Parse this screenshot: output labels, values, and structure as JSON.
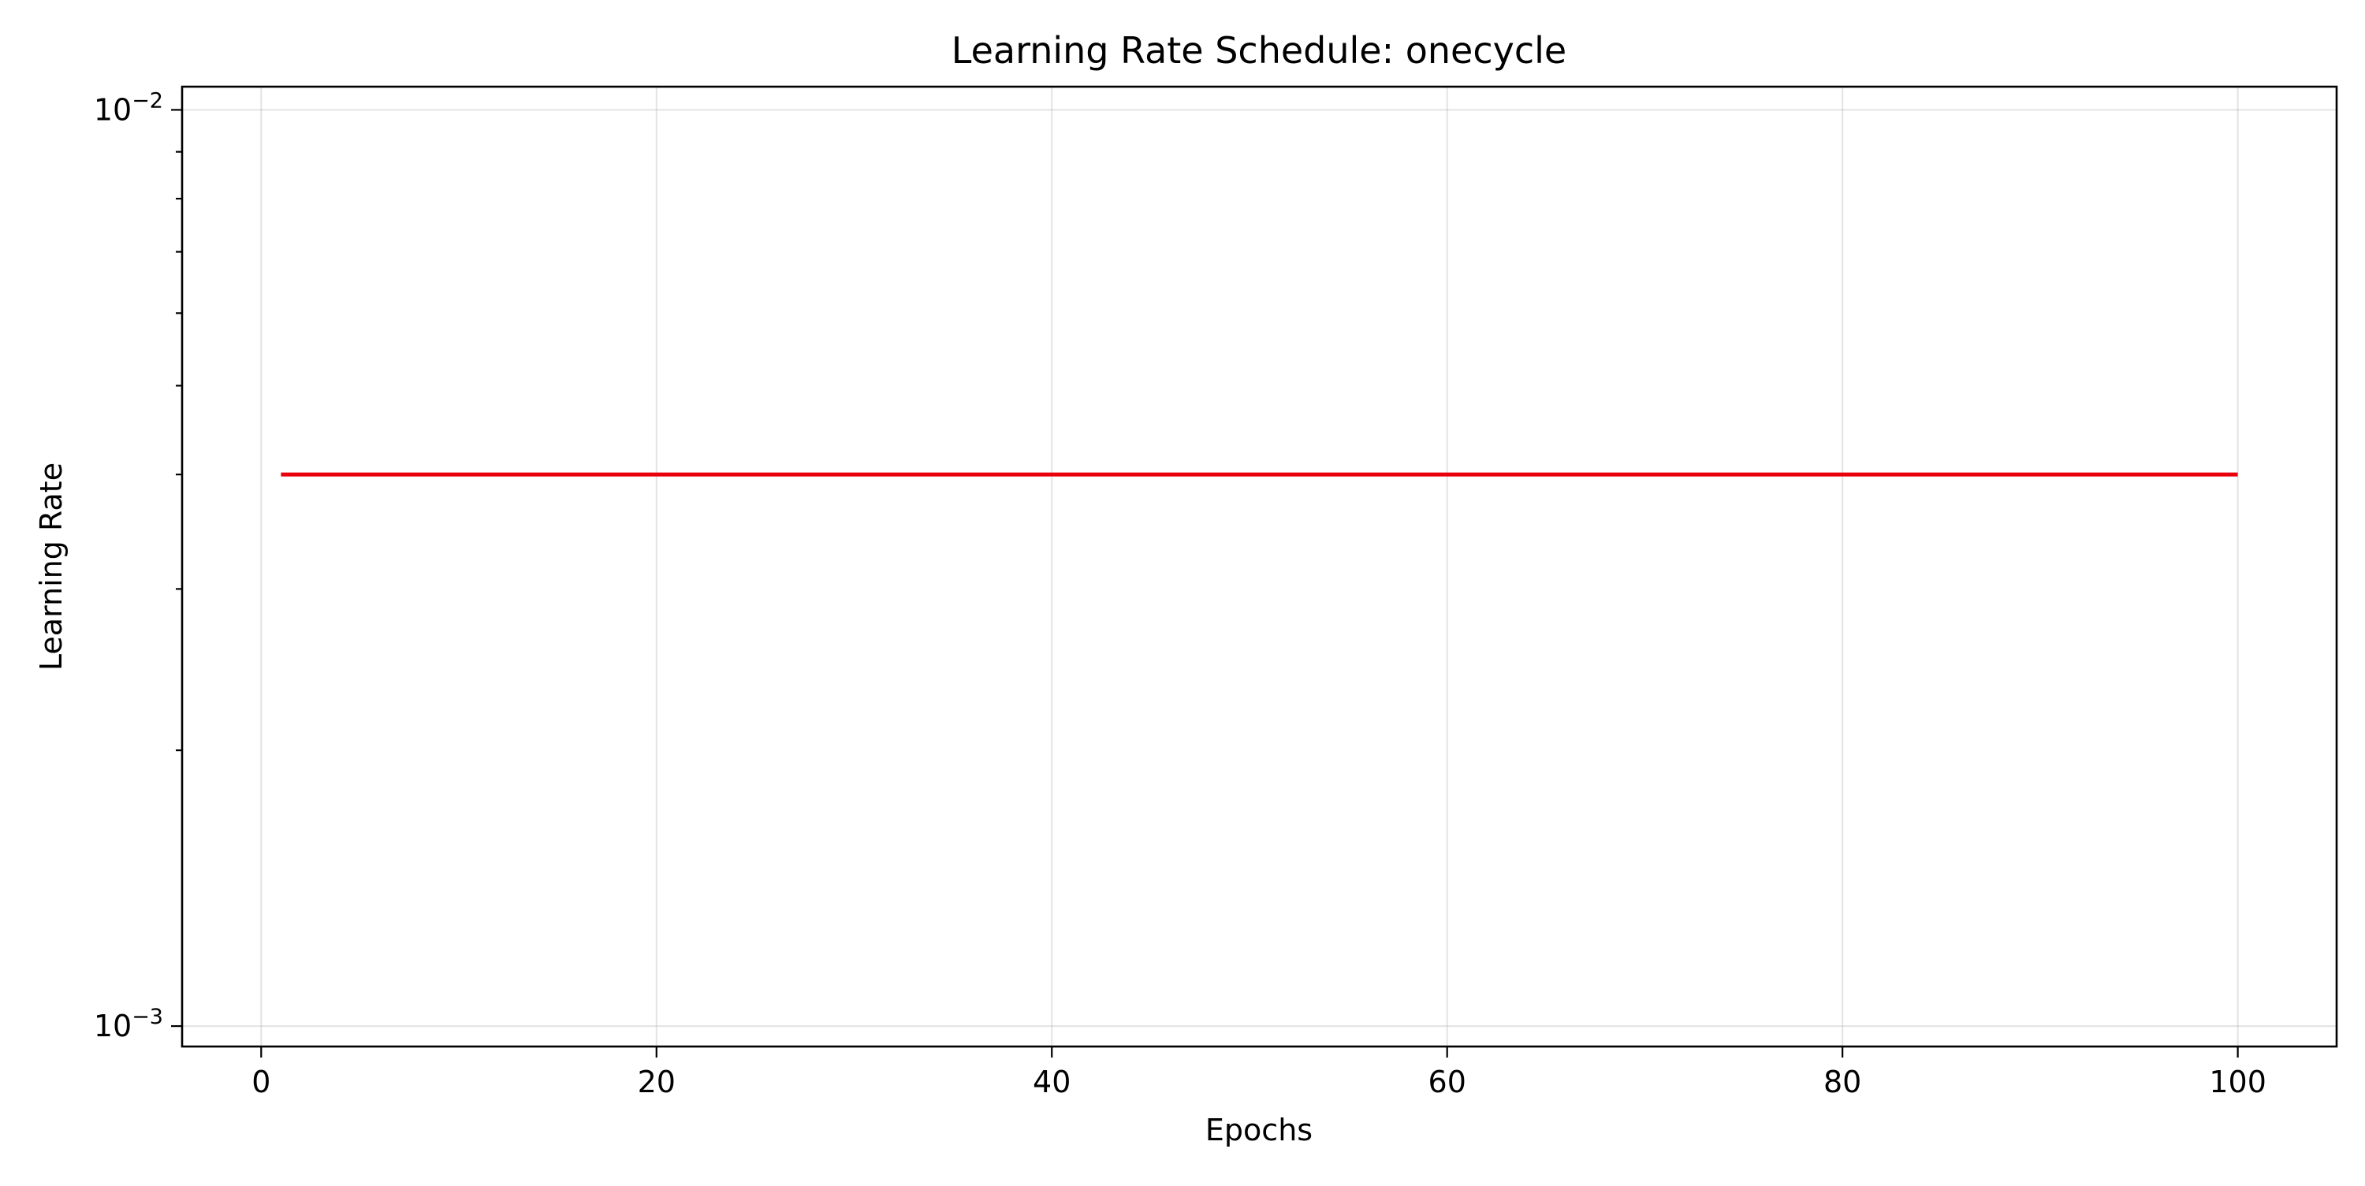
{
  "chart_data": {
    "type": "line",
    "title": "Learning Rate Schedule: onecycle",
    "xlabel": "Epochs",
    "ylabel": "Learning Rate",
    "yscale": "log",
    "xlim": [
      -4,
      105
    ],
    "ylim": [
      0.00095,
      0.0106
    ],
    "grid": true,
    "x_ticks": [
      {
        "value": 0,
        "label": "0"
      },
      {
        "value": 20,
        "label": "20"
      },
      {
        "value": 40,
        "label": "40"
      },
      {
        "value": 60,
        "label": "60"
      },
      {
        "value": 80,
        "label": "80"
      },
      {
        "value": 100,
        "label": "100"
      }
    ],
    "y_ticks": [
      {
        "value": 0.001,
        "base": "10",
        "exponent": "−3"
      },
      {
        "value": 0.01,
        "base": "10",
        "exponent": "−2"
      }
    ],
    "y_minor_ticks": [
      0.002,
      0.003,
      0.004,
      0.005,
      0.006,
      0.007,
      0.008,
      0.009
    ],
    "series": [
      {
        "color": "#e8000b",
        "x": [
          1,
          100
        ],
        "y": [
          0.004,
          0.004
        ]
      }
    ]
  }
}
